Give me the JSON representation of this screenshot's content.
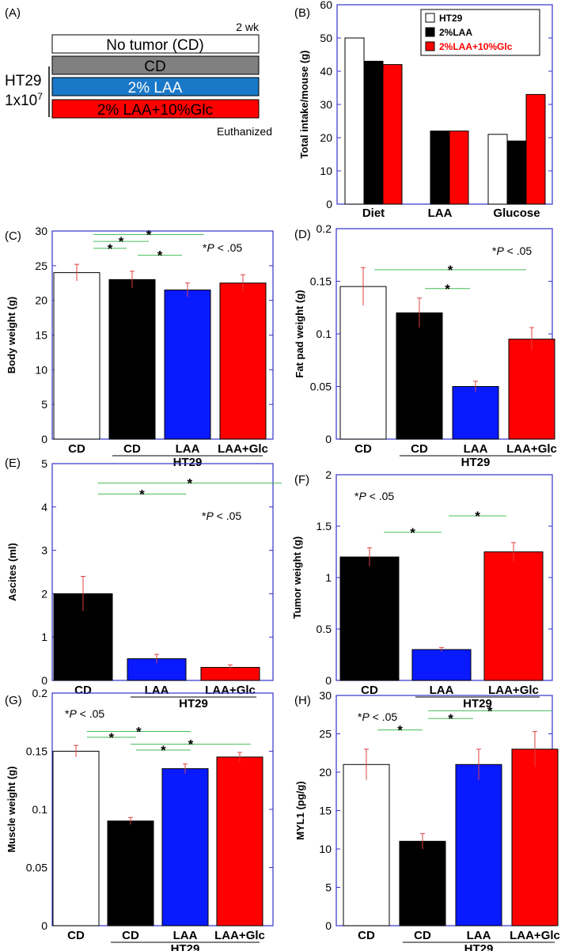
{
  "colors": {
    "axis": "#3333cc",
    "sig_line": "#44bb55",
    "error_bar": "#e04040",
    "white_bar": "#ffffff",
    "black_bar": "#000000",
    "blue_bar": "#0a1aff",
    "red_bar": "#ff0000",
    "gray_bar": "#808080",
    "blue_box": "#1a78c8",
    "legend_red_text": "#ff0000"
  },
  "design": {
    "panel_label": "(A)",
    "duration": "2 wk",
    "no_tumor": "No tumor (CD)",
    "cd": "CD",
    "laa": "2% LAA",
    "laa_glc": "2% LAA+10%Glc",
    "cell_line": "HT29",
    "cells_base": "1x10",
    "cells_exp": "7",
    "end": "Euthanized"
  },
  "group_label": "HT29",
  "chart_data": [
    {
      "id": "B",
      "panel_label": "(B)",
      "type": "bar",
      "ylabel": "Total intake/mouse (g)",
      "ylim": [
        0,
        60
      ],
      "yticks": [
        0,
        10,
        20,
        30,
        40,
        50,
        60
      ],
      "categories": [
        "Diet",
        "LAA",
        "Glucose"
      ],
      "legend": [
        {
          "label": "HT29",
          "color": "#ffffff",
          "text_color": "#000000"
        },
        {
          "label": "2%LAA",
          "color": "#000000",
          "text_color": "#000000"
        },
        {
          "label": "2%LAA+10%Glc",
          "color": "#ff0000",
          "text_color": "#ff0000"
        }
      ],
      "series": [
        {
          "name": "HT29",
          "color": "#ffffff",
          "values": [
            50,
            null,
            21
          ]
        },
        {
          "name": "2%LAA",
          "color": "#000000",
          "values": [
            43,
            22,
            19
          ]
        },
        {
          "name": "2%LAA+10%Glc",
          "color": "#ff0000",
          "values": [
            42,
            22,
            33
          ]
        }
      ]
    },
    {
      "id": "C",
      "panel_label": "(C)",
      "type": "bar",
      "ylabel": "Body weight (g)",
      "ylim": [
        0,
        30
      ],
      "yticks": [
        "0",
        "5",
        "10",
        "15",
        "20",
        "25",
        "30"
      ],
      "categories": [
        "CD",
        "CD",
        "LAA",
        "LAA+Glc"
      ],
      "colors": [
        "#ffffff",
        "#000000",
        "#0a1aff",
        "#ff0000"
      ],
      "values": [
        24,
        23,
        21.5,
        22.5
      ],
      "errors": [
        1.2,
        1.2,
        1.0,
        1.2
      ],
      "sig_note": {
        "prefix": "*",
        "p": "P",
        "suffix": " < .05"
      },
      "sig_lines": [
        {
          "from": 0.3,
          "to": 2.3,
          "level": 29.5,
          "label": "*"
        },
        {
          "from": 0.3,
          "to": 1.3,
          "level": 28.5,
          "label": "*"
        },
        {
          "from": 0.3,
          "to": 0.9,
          "level": 27.5,
          "label": "*"
        },
        {
          "from": 1.1,
          "to": 1.9,
          "level": 26.5,
          "label": "*"
        }
      ]
    },
    {
      "id": "D",
      "panel_label": "(D)",
      "type": "bar",
      "ylabel": "Fat pad weight (g)",
      "ylim": [
        0,
        0.2
      ],
      "yticks": [
        "0",
        "0.05",
        "0.1",
        "0.15",
        "0.2"
      ],
      "categories": [
        "CD",
        "CD",
        "LAA",
        "LAA+Glc"
      ],
      "colors": [
        "#ffffff",
        "#000000",
        "#0a1aff",
        "#ff0000"
      ],
      "values": [
        0.145,
        0.12,
        0.05,
        0.095
      ],
      "errors": [
        0.018,
        0.014,
        0.005,
        0.011
      ],
      "sig_note": {
        "prefix": "*",
        "p": "P",
        "suffix": " < .05"
      },
      "sig_lines": [
        {
          "from": 0.2,
          "to": 2.9,
          "level": 0.161,
          "label": "*"
        },
        {
          "from": 1.1,
          "to": 1.9,
          "level": 0.143,
          "label": "*"
        }
      ]
    },
    {
      "id": "E",
      "panel_label": "(E)",
      "type": "bar",
      "ylabel": "Ascites (ml)",
      "ylim": [
        0,
        5
      ],
      "yticks": [
        "0",
        "1",
        "2",
        "3",
        "4",
        "5"
      ],
      "categories": [
        "CD",
        "LAA",
        "LAA+Glc"
      ],
      "colors": [
        "#000000",
        "#0a1aff",
        "#ff0000"
      ],
      "values": [
        2.0,
        0.5,
        0.3
      ],
      "errors": [
        0.4,
        0.1,
        0.06
      ],
      "sig_note": {
        "prefix": "*",
        "p": "P",
        "suffix": " < .05"
      },
      "sig_lines": [
        {
          "from": 0.2,
          "to": 2.7,
          "level": 4.55,
          "label": "*"
        },
        {
          "from": 0.2,
          "to": 1.4,
          "level": 4.3,
          "label": "*"
        }
      ]
    },
    {
      "id": "F",
      "panel_label": "(F)",
      "type": "bar",
      "ylabel": "Tumor weight (g)",
      "ylim": [
        0,
        2
      ],
      "yticks": [
        "0",
        "0.5",
        "1",
        "1.5",
        "2"
      ],
      "categories": [
        "CD",
        "LAA",
        "LAA+Glc"
      ],
      "colors": [
        "#000000",
        "#0a1aff",
        "#ff0000"
      ],
      "values": [
        1.2,
        0.3,
        1.25
      ],
      "errors": [
        0.09,
        0.02,
        0.09
      ],
      "sig_note": {
        "prefix": "*",
        "p": "P",
        "suffix": " < .05"
      },
      "sig_lines": [
        {
          "from": 0.2,
          "to": 1.0,
          "level": 1.44,
          "label": "*"
        },
        {
          "from": 1.1,
          "to": 1.9,
          "level": 1.6,
          "label": "*"
        }
      ]
    },
    {
      "id": "G",
      "panel_label": "(G)",
      "type": "bar",
      "ylabel": "Muscle weight (g)",
      "ylim": [
        0,
        0.2
      ],
      "yticks": [
        "0",
        "0.05",
        "0.1",
        "0.15",
        "0.2"
      ],
      "categories": [
        "CD",
        "CD",
        "LAA",
        "LAA+Glc"
      ],
      "colors": [
        "#ffffff",
        "#000000",
        "#0a1aff",
        "#ff0000"
      ],
      "values": [
        0.15,
        0.09,
        0.135,
        0.145
      ],
      "errors": [
        0.005,
        0.003,
        0.004,
        0.004
      ],
      "sig_note": {
        "prefix": "*",
        "p": "P",
        "suffix": " < .05"
      },
      "sig_lines": [
        {
          "from": 0.2,
          "to": 2.1,
          "level": 0.167,
          "label": "*"
        },
        {
          "from": 0.2,
          "to": 1.1,
          "level": 0.162,
          "label": "*"
        },
        {
          "from": 1.0,
          "to": 3.2,
          "level": 0.156,
          "label": "*"
        },
        {
          "from": 1.1,
          "to": 2.1,
          "level": 0.151,
          "label": "*"
        }
      ]
    },
    {
      "id": "H",
      "panel_label": "(H)",
      "type": "bar",
      "ylabel": "MYL1 (pg/g)",
      "ylim": [
        0,
        30
      ],
      "yticks": [
        "0",
        "5",
        "10",
        "15",
        "20",
        "25",
        "30"
      ],
      "categories": [
        "CD",
        "CD",
        "LAA",
        "LAA+Glc"
      ],
      "colors": [
        "#ffffff",
        "#000000",
        "#0a1aff",
        "#ff0000"
      ],
      "values": [
        21,
        11,
        21,
        23
      ],
      "errors": [
        2.0,
        1.0,
        2.0,
        2.3
      ],
      "sig_note": {
        "prefix": "*",
        "p": "P",
        "suffix": " < .05"
      },
      "sig_lines": [
        {
          "from": 0.2,
          "to": 1.0,
          "level": 25.5,
          "label": "*"
        },
        {
          "from": 1.1,
          "to": 1.9,
          "level": 27.0,
          "label": "*"
        },
        {
          "from": 1.1,
          "to": 3.3,
          "level": 28.0,
          "label": "*"
        }
      ]
    }
  ]
}
